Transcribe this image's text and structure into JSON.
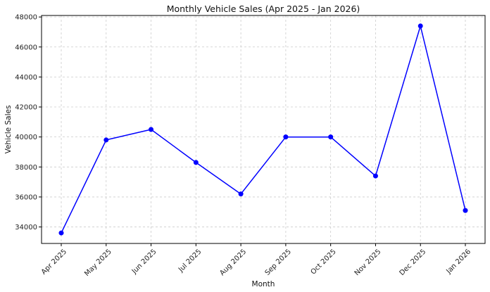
{
  "chart_data": {
    "type": "line",
    "title": "Monthly Vehicle Sales (Apr 2025 - Jan 2026)",
    "xlabel": "Month",
    "ylabel": "Vehicle Sales",
    "categories": [
      "Apr 2025",
      "May 2025",
      "Jun 2025",
      "Jul 2025",
      "Aug 2025",
      "Sep 2025",
      "Oct 2025",
      "Nov 2025",
      "Dec 2025",
      "Jan 2026"
    ],
    "values": [
      33600,
      39800,
      40500,
      38300,
      36200,
      40000,
      40000,
      37400,
      47400,
      35100
    ],
    "ylim": [
      32900,
      48100
    ],
    "yticks": [
      34000,
      36000,
      38000,
      40000,
      42000,
      44000,
      46000,
      48000
    ],
    "grid": true,
    "line_color": "#0000ff",
    "marker": "circle"
  }
}
